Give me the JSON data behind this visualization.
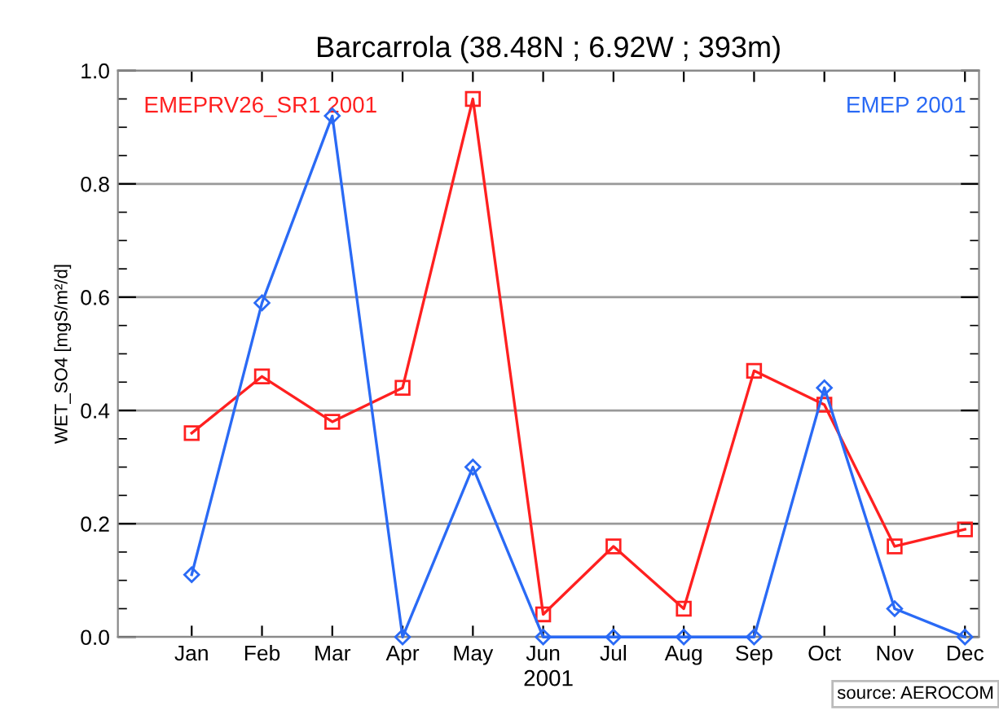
{
  "chart_data": {
    "type": "line",
    "title": "Barcarrola (38.48N ; 6.92W ; 393m)",
    "xlabel": "2001",
    "ylabel": "WET_SO4 [mgS/m²/d]",
    "categories": [
      "Jan",
      "Feb",
      "Mar",
      "Apr",
      "May",
      "Jun",
      "Jul",
      "Aug",
      "Sep",
      "Oct",
      "Nov",
      "Dec"
    ],
    "series": [
      {
        "name": "EMEPRV26_SR1 2001",
        "color": "#ff2020",
        "marker": "square",
        "values": [
          0.36,
          0.46,
          0.38,
          0.44,
          0.95,
          0.04,
          0.16,
          0.05,
          0.47,
          0.41,
          0.16,
          0.19
        ]
      },
      {
        "name": "EMEP 2001",
        "color": "#2a6af5",
        "marker": "diamond",
        "values": [
          0.11,
          0.59,
          0.92,
          0.0,
          0.3,
          0.0,
          0.0,
          0.0,
          0.0,
          0.44,
          0.05,
          0.0
        ]
      }
    ],
    "ylim": [
      0,
      1.0
    ],
    "yticks": [
      {
        "value": 0,
        "label": "0.0"
      },
      0.2,
      0.4,
      0.6,
      0.8,
      {
        "value": 1,
        "label": "1.0"
      }
    ],
    "grid": "y",
    "legend": false,
    "annotations": [
      "source: AEROCOM"
    ]
  }
}
